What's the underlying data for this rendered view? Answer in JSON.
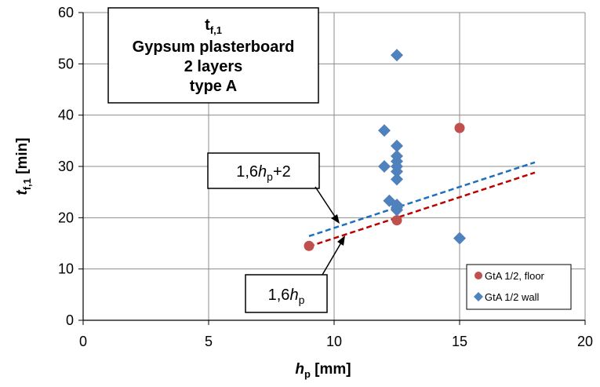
{
  "chart_data": {
    "type": "scatter",
    "title_lines": [
      "Gypsum plasterboard",
      "2 layers",
      "type A"
    ],
    "title_symbol": {
      "main": "t",
      "sub": "f,1"
    },
    "xlabel": {
      "main": "h",
      "sub": "p",
      "unit": " [mm]"
    },
    "ylabel": {
      "main": "t",
      "sub": "f,1",
      "unit": " [min]"
    },
    "xlim": [
      0,
      20
    ],
    "ylim": [
      0,
      60
    ],
    "x_ticks": [
      0,
      5,
      10,
      15,
      20
    ],
    "y_ticks": [
      0,
      10,
      20,
      30,
      40,
      50,
      60
    ],
    "x_tick_labels": [
      "0",
      "5",
      "10",
      "15",
      "20"
    ],
    "y_tick_labels": [
      "0",
      "10",
      "20",
      "30",
      "40",
      "50",
      "60"
    ],
    "grid": true,
    "legend_position": "bottom-right",
    "series": [
      {
        "name": "GtA 1/2, floor",
        "marker": "circle",
        "color": "#c0504d",
        "points": [
          [
            9,
            14.5
          ],
          [
            12.5,
            19.5
          ],
          [
            15,
            37.5
          ]
        ]
      },
      {
        "name": "GtA 1/2 wall",
        "marker": "diamond",
        "color": "#4f81bd",
        "points": [
          [
            12,
            37
          ],
          [
            12,
            30
          ],
          [
            12.2,
            23.3
          ],
          [
            12.5,
            51.7
          ],
          [
            12.5,
            34
          ],
          [
            12.5,
            32
          ],
          [
            12.5,
            31
          ],
          [
            12.5,
            30
          ],
          [
            12.5,
            29
          ],
          [
            12.5,
            27.5
          ],
          [
            12.5,
            22.5
          ],
          [
            12.5,
            22
          ],
          [
            12.5,
            21.5
          ],
          [
            15,
            16
          ]
        ]
      }
    ],
    "lines": [
      {
        "label_main": "1,6",
        "label_var": "h",
        "label_sub": "p",
        "label_suffix": "+2",
        "slope": 1.6,
        "intercept": 2,
        "x_range": [
          9,
          18
        ],
        "color": "#1f6fbf"
      },
      {
        "label_main": "1,6",
        "label_var": "h",
        "label_sub": "p",
        "label_suffix": "",
        "slope": 1.6,
        "intercept": 0,
        "x_range": [
          9,
          18
        ],
        "color": "#c00000"
      }
    ]
  }
}
